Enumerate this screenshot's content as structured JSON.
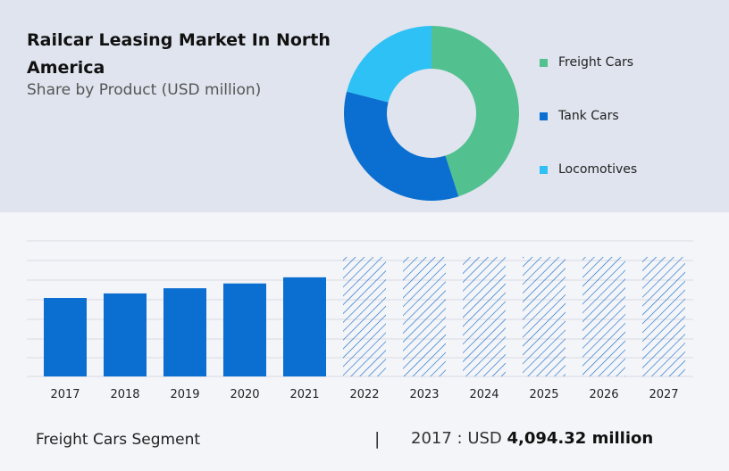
{
  "header": {
    "title": "Railcar Leasing Market In North America",
    "subtitle": "Share by Product (USD million)"
  },
  "colors": {
    "freight": "#52c08f",
    "tank": "#0a6fd0",
    "locomotives": "#2ec1f5",
    "hatch": "#1b6fc9",
    "grid": "#d8dbe3"
  },
  "chart_data": [
    {
      "type": "pie",
      "variant": "donut",
      "categories": [
        "Freight Cars",
        "Tank Cars",
        "Locomotives"
      ],
      "values": [
        45,
        34,
        21
      ],
      "legend_position": "right"
    },
    {
      "type": "bar",
      "categories": [
        "2017",
        "2018",
        "2019",
        "2020",
        "2021",
        "2022",
        "2023",
        "2024",
        "2025",
        "2026",
        "2027"
      ],
      "values": [
        4094.32,
        4330,
        4600,
        4850,
        5170,
        null,
        null,
        null,
        null,
        null,
        null
      ],
      "forecast_categories": [
        "2022",
        "2023",
        "2024",
        "2025",
        "2026",
        "2027"
      ],
      "grid": true
    }
  ],
  "footer": {
    "segment": "Freight Cars Segment",
    "separator": "|",
    "value_prefix": "2017 : USD ",
    "value": "4,094.32 million"
  }
}
